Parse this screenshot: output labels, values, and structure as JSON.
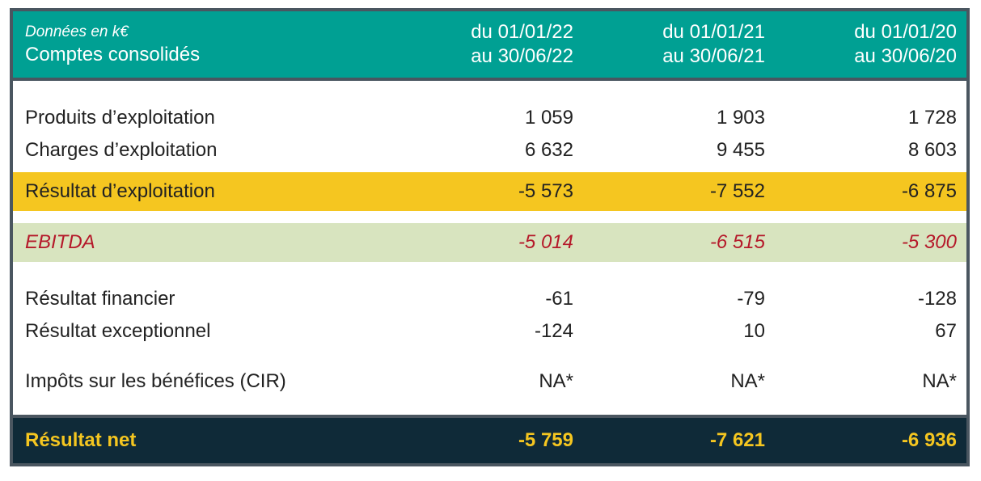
{
  "header": {
    "unit": "Données en k€",
    "subtitle": "Comptes consolidés",
    "periods": [
      {
        "from": "du 01/01/22",
        "to": "au 30/06/22"
      },
      {
        "from": "du 01/01/21",
        "to": "au 30/06/21"
      },
      {
        "from": "du 01/01/20",
        "to": "au 30/06/20"
      }
    ]
  },
  "rows": {
    "produits": {
      "label": "Produits d’exploitation",
      "values": [
        "1 059",
        "1 903",
        "1 728"
      ]
    },
    "charges": {
      "label": "Charges d’exploitation",
      "values": [
        "6 632",
        "9 455",
        "8 603"
      ]
    },
    "resultat_exploitation": {
      "label": "Résultat d’exploitation",
      "values": [
        "-5 573",
        "-7 552",
        "-6 875"
      ]
    },
    "ebitda": {
      "label": "EBITDA",
      "values": [
        "-5 014",
        "-6 515",
        "-5 300"
      ]
    },
    "resultat_financier": {
      "label": "Résultat financier",
      "values": [
        "-61",
        "-79",
        "-128"
      ]
    },
    "resultat_exceptionnel": {
      "label": "Résultat exceptionnel",
      "values": [
        "-124",
        "10",
        "67"
      ]
    },
    "impots": {
      "label": "Impôts sur les bénéfices (CIR)",
      "values": [
        "NA*",
        "NA*",
        "NA*"
      ]
    },
    "resultat_net": {
      "label": "Résultat net",
      "values": [
        "-5 759",
        "-7 621",
        "-6 936"
      ]
    }
  },
  "colors": {
    "header_bg": "#00a093",
    "highlight_orange": "#f5c620",
    "highlight_green": "#d8e4bf",
    "ebitda_text": "#b5192a",
    "net_bg": "#0f2a38",
    "frame": "#4a5660"
  }
}
